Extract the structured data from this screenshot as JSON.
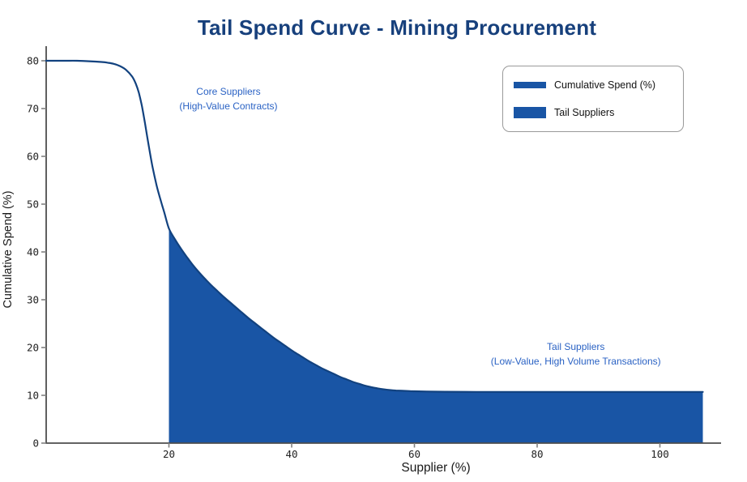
{
  "title": "Tail Spend Curve - Mining Procurement",
  "colors": {
    "title": "#17407c",
    "line": "#12427f",
    "fill": "#1955a5",
    "annotation": "#2a62c4",
    "spine": "#4d4d4d",
    "tick": "#808080",
    "tick_label": "#222222",
    "legend_border": "#9a9a9a"
  },
  "legend": {
    "items": [
      {
        "label": "Cumulative Spend (%)",
        "swatch": "line"
      },
      {
        "label": "Tail Suppliers",
        "swatch": "patch"
      }
    ]
  },
  "chart_data": {
    "type": "area",
    "title": "Tail Spend Curve - Mining Procurement",
    "xlabel": "Supplier (%)",
    "ylabel": "Cumulative Spend (%)",
    "xlim": [
      0,
      110
    ],
    "ylim": [
      0,
      83
    ],
    "xticks": [
      20,
      40,
      60,
      80,
      100
    ],
    "yticks": [
      0,
      10,
      20,
      30,
      40,
      50,
      60,
      70,
      80
    ],
    "grid": false,
    "legend_position": "upper right",
    "series": [
      {
        "name": "Cumulative Spend (%)",
        "points": [
          [
            0,
            80
          ],
          [
            3,
            80
          ],
          [
            5,
            80
          ],
          [
            7,
            79.9
          ],
          [
            9,
            79.75
          ],
          [
            10,
            79.6
          ],
          [
            11,
            79.35
          ],
          [
            12,
            78.9
          ],
          [
            13,
            78.1
          ],
          [
            14,
            76.7
          ],
          [
            14.6,
            75.2
          ],
          [
            15.1,
            73.3
          ],
          [
            15.6,
            70.5
          ],
          [
            16.1,
            66.9
          ],
          [
            16.7,
            62.3
          ],
          [
            17.3,
            58.0
          ],
          [
            18,
            53.9
          ],
          [
            18.7,
            50.6
          ],
          [
            19.3,
            48.0
          ],
          [
            20,
            44.9
          ],
          [
            21,
            42.6
          ],
          [
            22,
            40.6
          ],
          [
            23,
            38.8
          ],
          [
            24,
            37.1
          ],
          [
            25,
            35.6
          ],
          [
            26,
            34.2
          ],
          [
            27,
            32.9
          ],
          [
            28,
            31.7
          ],
          [
            29,
            30.5
          ],
          [
            30,
            29.4
          ],
          [
            31,
            28.3
          ],
          [
            32,
            27.2
          ],
          [
            33,
            26.1
          ],
          [
            34,
            25.1
          ],
          [
            35,
            24.1
          ],
          [
            36,
            23.1
          ],
          [
            37,
            22.1
          ],
          [
            38,
            21.2
          ],
          [
            39,
            20.3
          ],
          [
            40,
            19.4
          ],
          [
            41,
            18.6
          ],
          [
            42,
            17.8
          ],
          [
            43,
            17.0
          ],
          [
            44,
            16.3
          ],
          [
            45,
            15.6
          ],
          [
            46,
            15.0
          ],
          [
            47,
            14.4
          ],
          [
            48,
            13.8
          ],
          [
            49,
            13.3
          ],
          [
            50,
            12.8
          ],
          [
            51,
            12.4
          ],
          [
            52,
            12.0
          ],
          [
            53,
            11.7
          ],
          [
            54,
            11.45
          ],
          [
            55,
            11.25
          ],
          [
            56,
            11.1
          ],
          [
            57,
            11.0
          ],
          [
            58,
            10.95
          ],
          [
            59,
            10.9
          ],
          [
            60,
            10.85
          ],
          [
            62,
            10.8
          ],
          [
            65,
            10.75
          ],
          [
            70,
            10.72
          ],
          [
            75,
            10.72
          ],
          [
            80,
            10.72
          ],
          [
            85,
            10.72
          ],
          [
            90,
            10.72
          ],
          [
            95,
            10.72
          ],
          [
            100,
            10.72
          ],
          [
            104,
            10.72
          ],
          [
            107,
            10.72
          ]
        ]
      }
    ],
    "fill_region": {
      "name": "Tail Suppliers",
      "x_start": 20,
      "x_end": 107,
      "baseline": 0
    },
    "annotations": [
      {
        "lines": [
          "Core Suppliers",
          "(High-Value Contracts)"
        ],
        "x": 29.7,
        "y": 72.0
      },
      {
        "lines": [
          "Tail Suppliers",
          "(Low-Value, High Volume Transactions)"
        ],
        "x": 86.3,
        "y": 18.6
      }
    ]
  }
}
